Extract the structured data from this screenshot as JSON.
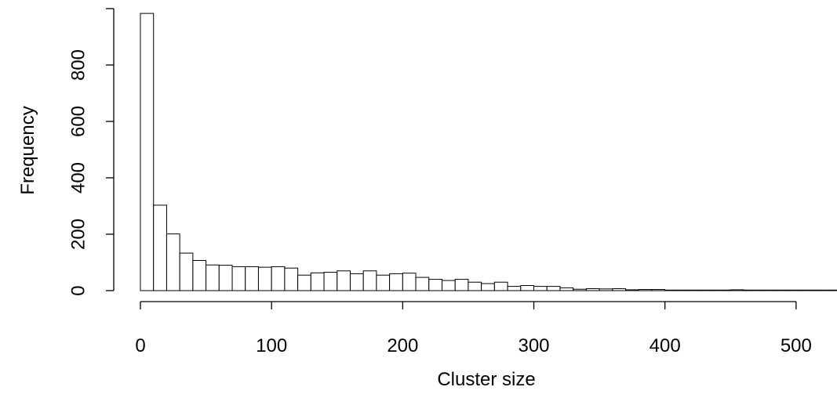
{
  "chart_data": {
    "type": "bar",
    "title": "",
    "xlabel": "Cluster size",
    "ylabel": "Frequency",
    "bin_width": 10,
    "bin_starts": [
      0,
      10,
      20,
      30,
      40,
      50,
      60,
      70,
      80,
      90,
      100,
      110,
      120,
      130,
      140,
      150,
      160,
      170,
      180,
      190,
      200,
      210,
      220,
      230,
      240,
      250,
      260,
      270,
      280,
      290,
      300,
      310,
      320,
      330,
      340,
      350,
      360,
      370,
      380,
      390,
      400,
      410,
      420,
      430,
      440,
      450,
      460,
      470,
      480,
      490,
      500,
      510,
      520,
      530
    ],
    "values": [
      983,
      303,
      201,
      133,
      107,
      91,
      90,
      85,
      85,
      83,
      85,
      80,
      55,
      63,
      65,
      70,
      60,
      70,
      55,
      60,
      62,
      47,
      40,
      36,
      40,
      30,
      25,
      30,
      15,
      18,
      15,
      15,
      10,
      5,
      7,
      6,
      7,
      3,
      4,
      4,
      2,
      2,
      2,
      2,
      2,
      3,
      2,
      2,
      2,
      2,
      2,
      2,
      2,
      2
    ],
    "xlim": [
      0,
      530
    ],
    "ylim": [
      0,
      1000
    ],
    "x_ticks": [
      "0",
      "100",
      "200",
      "300",
      "400",
      "500"
    ],
    "y_ticks": [
      "0",
      "200",
      "400",
      "600",
      "800"
    ],
    "x_tick_values": [
      0,
      100,
      200,
      300,
      400,
      500
    ],
    "y_tick_values": [
      0,
      200,
      400,
      600,
      800
    ],
    "grid": false,
    "legend": "none",
    "colors": {
      "bar_fill": "#ffffff",
      "bar_stroke": "#000000"
    }
  }
}
